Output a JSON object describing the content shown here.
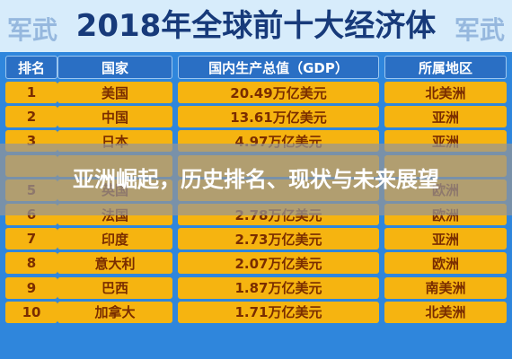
{
  "header": {
    "title": "2018年全球前十大经济体",
    "watermark_left": "军武",
    "watermark_right": "军武"
  },
  "table": {
    "columns": [
      "排名",
      "国家",
      "国内生产总值（GDP）",
      "所属地区"
    ],
    "rows": [
      {
        "rank": "1",
        "country": "美国",
        "gdp": "20.49万亿美元",
        "region": "北美洲"
      },
      {
        "rank": "2",
        "country": "中国",
        "gdp": "13.61万亿美元",
        "region": "亚洲"
      },
      {
        "rank": "3",
        "country": "日本",
        "gdp": "4.97万亿美元",
        "region": "亚洲"
      },
      {
        "rank": "5",
        "country": "英国",
        "region": "欧洲"
      },
      {
        "rank": "6",
        "country": "法国",
        "gdp": "2.78万亿美元",
        "region": "欧洲"
      },
      {
        "rank": "7",
        "country": "印度",
        "gdp": "2.73万亿美元",
        "region": "亚洲"
      },
      {
        "rank": "8",
        "country": "意大利",
        "gdp": "2.07万亿美元",
        "region": "欧洲"
      },
      {
        "rank": "9",
        "country": "巴西",
        "gdp": "1.87万亿美元",
        "region": "南美洲"
      },
      {
        "rank": "10",
        "country": "加拿大",
        "gdp": "1.71万亿美元",
        "region": "北美洲"
      }
    ]
  },
  "banner": {
    "title": "亚洲崛起，历史排名、现状与未来展望"
  }
}
